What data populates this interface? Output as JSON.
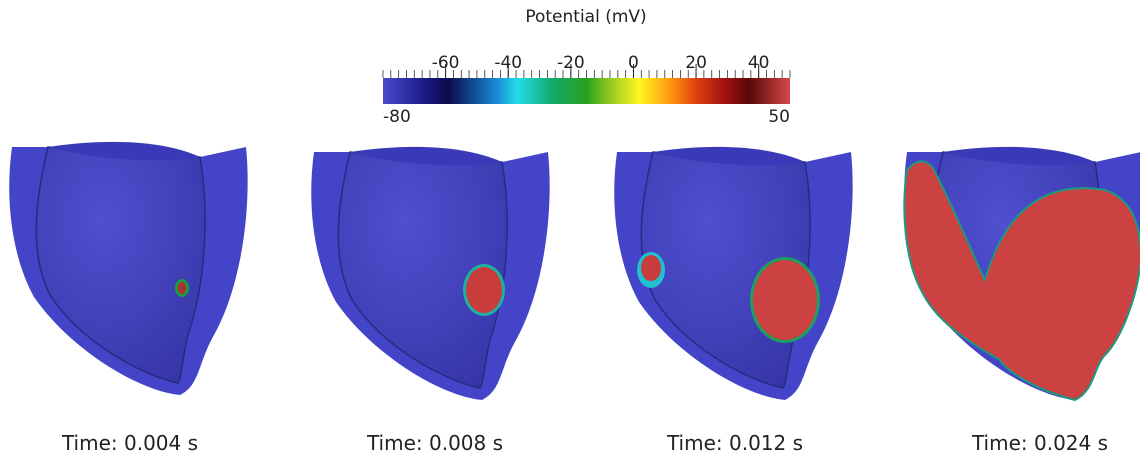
{
  "colorbar": {
    "title": "Potential (mV)",
    "range": [
      -80,
      50
    ],
    "ticks": [
      -60,
      -40,
      -20,
      0,
      20,
      40
    ]
  },
  "panels": [
    {
      "label": "Time:  0.004 s"
    },
    {
      "label": "Time:  0.008 s"
    },
    {
      "label": "Time:  0.012 s"
    },
    {
      "label": "Time:  0.024 s"
    }
  ]
}
